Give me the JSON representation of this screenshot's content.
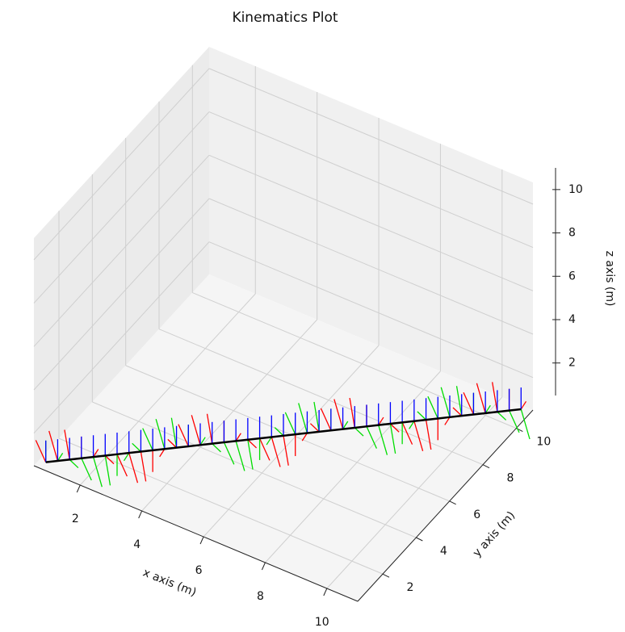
{
  "chart_data": {
    "type": "line3d",
    "title": "Kinematics Plot",
    "xlabel": "x axis (m)",
    "ylabel": "y axis (m)",
    "zlabel": "z axis (m)",
    "xlim": [
      0.5,
      11
    ],
    "ylim": [
      0.5,
      11
    ],
    "zlim": [
      0.5,
      11
    ],
    "xticks": [
      2,
      4,
      6,
      8,
      10
    ],
    "yticks": [
      2,
      4,
      6,
      8,
      10
    ],
    "zticks": [
      2,
      4,
      6,
      8,
      10
    ],
    "line_color": "#000000",
    "frame_colors": [
      "#ff0000",
      "#00dd00",
      "#0000ff"
    ],
    "x": [
      0.75,
      1,
      1.25,
      1.5,
      1.75,
      2,
      2.25,
      2.5,
      2.75,
      3,
      3.25,
      3.5,
      3.75,
      4,
      4.25,
      4.5,
      4.75,
      5,
      5.25,
      5.5,
      5.75,
      6,
      6.25,
      6.5,
      6.75,
      7,
      7.25,
      7.5,
      7.75,
      8,
      8.25,
      8.5,
      8.75,
      9,
      9.25,
      9.5,
      9.75,
      10,
      10.25,
      10.5,
      10.75
    ],
    "y": [
      0.75,
      1,
      1.25,
      1.5,
      1.75,
      2,
      2.25,
      2.5,
      2.75,
      3,
      3.25,
      3.5,
      3.75,
      4,
      4.25,
      4.5,
      4.75,
      5,
      5.25,
      5.5,
      5.75,
      6,
      6.25,
      6.5,
      6.75,
      7,
      7.25,
      7.5,
      7.75,
      8,
      8.25,
      8.5,
      8.75,
      9,
      9.25,
      9.5,
      9.75,
      10,
      10.25,
      10.5,
      10.75
    ],
    "z": [
      0.6,
      0.6,
      0.6,
      0.6,
      0.6,
      0.6,
      0.6,
      0.6,
      0.6,
      0.6,
      0.6,
      0.6,
      0.6,
      0.6,
      0.6,
      0.6,
      0.6,
      0.6,
      0.6,
      0.6,
      0.6,
      0.6,
      0.6,
      0.6,
      0.6,
      0.6,
      0.6,
      0.6,
      0.6,
      0.6,
      0.6,
      0.6,
      0.6,
      0.6,
      0.6,
      0.6,
      0.6,
      0.6,
      0.6,
      0.6,
      0.6
    ],
    "roll": [
      0,
      30,
      60,
      90,
      120,
      150,
      180,
      210,
      240,
      270,
      300,
      330,
      0,
      30,
      60,
      90,
      120,
      150,
      180,
      210,
      240,
      270,
      300,
      330,
      0,
      30,
      60,
      90,
      120,
      150,
      180,
      210,
      240,
      270,
      300,
      330,
      0,
      30,
      60,
      90,
      120
    ]
  }
}
